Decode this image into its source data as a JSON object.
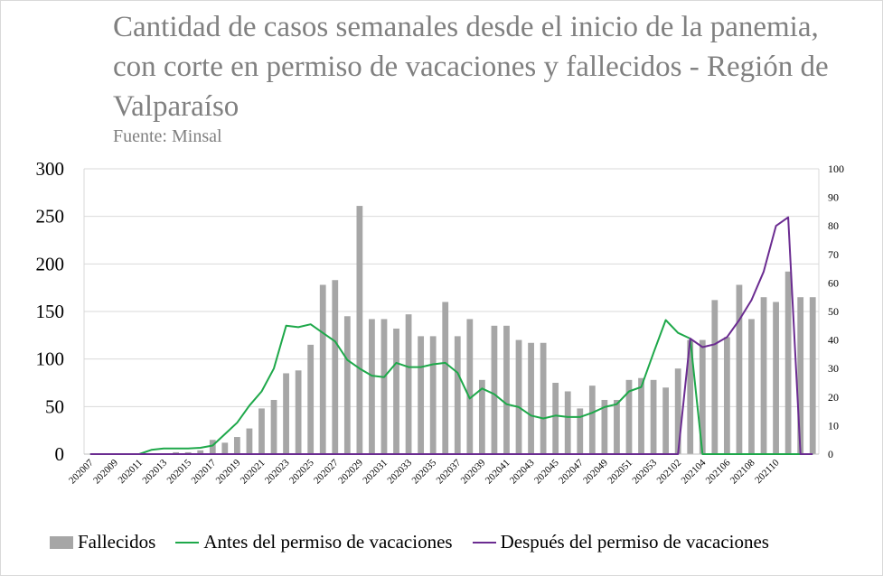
{
  "colors": {
    "bars": "#a6a6a6",
    "antes": "#1ea84a",
    "despues": "#6b2c91",
    "grid": "#d9d9d9"
  },
  "chart_data": {
    "type": "bar",
    "title": "Cantidad de casos semanales desde el inicio de la panemia, con corte en permiso de vacaciones y fallecidos - Región de Valparaíso",
    "subtitle": "Fuente: Minsal",
    "ylim": [
      0,
      300
    ],
    "yticks": [
      0,
      50,
      100,
      150,
      200,
      250,
      300
    ],
    "y2lim": [
      0,
      100
    ],
    "y2ticks": [
      0,
      10,
      20,
      30,
      40,
      50,
      60,
      70,
      80,
      90,
      100
    ],
    "x_tick_labels": [
      "202007",
      "202009",
      "202011",
      "202013",
      "202015",
      "202017",
      "202019",
      "202021",
      "202023",
      "202025",
      "202027",
      "202029",
      "202031",
      "202033",
      "202035",
      "202037",
      "202039",
      "202041",
      "202043",
      "202045",
      "202047",
      "202049",
      "202051",
      "202053",
      "202102",
      "202104",
      "202106",
      "202108",
      "202110"
    ],
    "categories": [
      "202007",
      "202008",
      "202009",
      "202010",
      "202011",
      "202012",
      "202013",
      "202014",
      "202015",
      "202016",
      "202017",
      "202018",
      "202019",
      "202020",
      "202021",
      "202022",
      "202023",
      "202024",
      "202025",
      "202026",
      "202027",
      "202028",
      "202029",
      "202030",
      "202031",
      "202032",
      "202033",
      "202034",
      "202035",
      "202036",
      "202037",
      "202038",
      "202039",
      "202040",
      "202041",
      "202042",
      "202043",
      "202044",
      "202045",
      "202046",
      "202047",
      "202048",
      "202049",
      "202050",
      "202051",
      "202052",
      "202053",
      "202101",
      "202102",
      "202103",
      "202104",
      "202105",
      "202106",
      "202107",
      "202108",
      "202109",
      "202110",
      "202111",
      "202112",
      "202113"
    ],
    "series": [
      {
        "name": "Fallecidos",
        "type": "bar",
        "axis": "left",
        "values": [
          0,
          0,
          0,
          0,
          0,
          0,
          0,
          2,
          2,
          4,
          15,
          12,
          18,
          27,
          48,
          57,
          85,
          88,
          115,
          178,
          183,
          145,
          261,
          142,
          142,
          132,
          147,
          124,
          124,
          160,
          124,
          142,
          78,
          135,
          135,
          120,
          117,
          117,
          75,
          66,
          48,
          72,
          57,
          57,
          78,
          80,
          78,
          70,
          90,
          120,
          120,
          162,
          123,
          178,
          142,
          165,
          160,
          192,
          165,
          165
        ]
      },
      {
        "name": "Antes del permiso de vacaciones",
        "type": "line",
        "axis": "right",
        "values": [
          0,
          0,
          0,
          0,
          0,
          1.5,
          2,
          2,
          2,
          2.2,
          3,
          7,
          11,
          17,
          22,
          30,
          45,
          44.5,
          45.5,
          42.5,
          39.5,
          33,
          30,
          27.5,
          27,
          32,
          30.5,
          30.5,
          31.5,
          32,
          28.5,
          19.5,
          23,
          21,
          17.5,
          16.5,
          13.5,
          12.5,
          13.5,
          13,
          13,
          14.5,
          16.5,
          17.5,
          22,
          23.5,
          35.5,
          47,
          42.5,
          40.5,
          0,
          0,
          0,
          0,
          0,
          0,
          0,
          0,
          0,
          0
        ]
      },
      {
        "name": "Después del permiso de vacaciones",
        "type": "line",
        "axis": "right",
        "values": [
          0,
          0,
          0,
          0,
          0,
          0,
          0,
          0,
          0,
          0,
          0,
          0,
          0,
          0,
          0,
          0,
          0,
          0,
          0,
          0,
          0,
          0,
          0,
          0,
          0,
          0,
          0,
          0,
          0,
          0,
          0,
          0,
          0,
          0,
          0,
          0,
          0,
          0,
          0,
          0,
          0,
          0,
          0,
          0,
          0,
          0,
          0,
          0,
          0,
          40.5,
          37.5,
          38.5,
          41,
          47,
          54,
          64,
          80,
          83,
          0,
          0
        ]
      }
    ],
    "legend_position": "bottom",
    "grid": true
  }
}
